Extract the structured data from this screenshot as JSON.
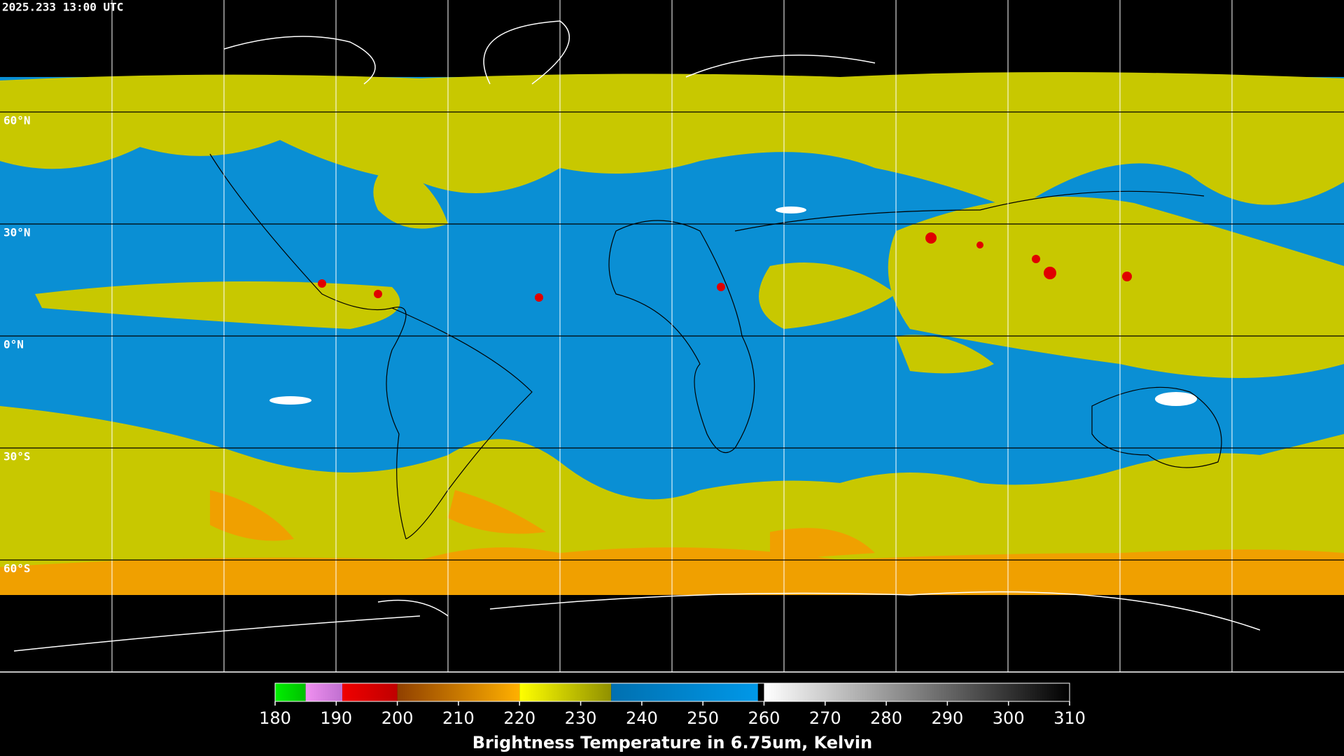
{
  "header": {
    "timestamp": "2025.233 13:00 UTC"
  },
  "latitude_labels": [
    "60°N",
    "30°N",
    "0°N",
    "30°S",
    "60°S"
  ],
  "colorbar": {
    "range": [
      180,
      310
    ],
    "ticks": [
      180,
      190,
      200,
      210,
      220,
      230,
      240,
      250,
      260,
      270,
      280,
      290,
      300,
      310
    ],
    "label": "Brightness Temperature in 6.75um, Kelvin",
    "segments": [
      {
        "from": 180,
        "to": 185,
        "colors": [
          "#00f000",
          "#00c000"
        ]
      },
      {
        "from": 185,
        "to": 191,
        "colors": [
          "#f090f0",
          "#c070d0"
        ]
      },
      {
        "from": 191,
        "to": 200,
        "colors": [
          "#f00000",
          "#c00000"
        ]
      },
      {
        "from": 200,
        "to": 220,
        "colors": [
          "#904000",
          "#ffb000"
        ]
      },
      {
        "from": 220,
        "to": 235,
        "colors": [
          "#ffff00",
          "#909000"
        ]
      },
      {
        "from": 235,
        "to": 259,
        "colors": [
          "#0070b0",
          "#0098e8"
        ]
      },
      {
        "from": 260,
        "to": 310,
        "colors": [
          "#ffffff",
          "#000000"
        ]
      }
    ]
  }
}
